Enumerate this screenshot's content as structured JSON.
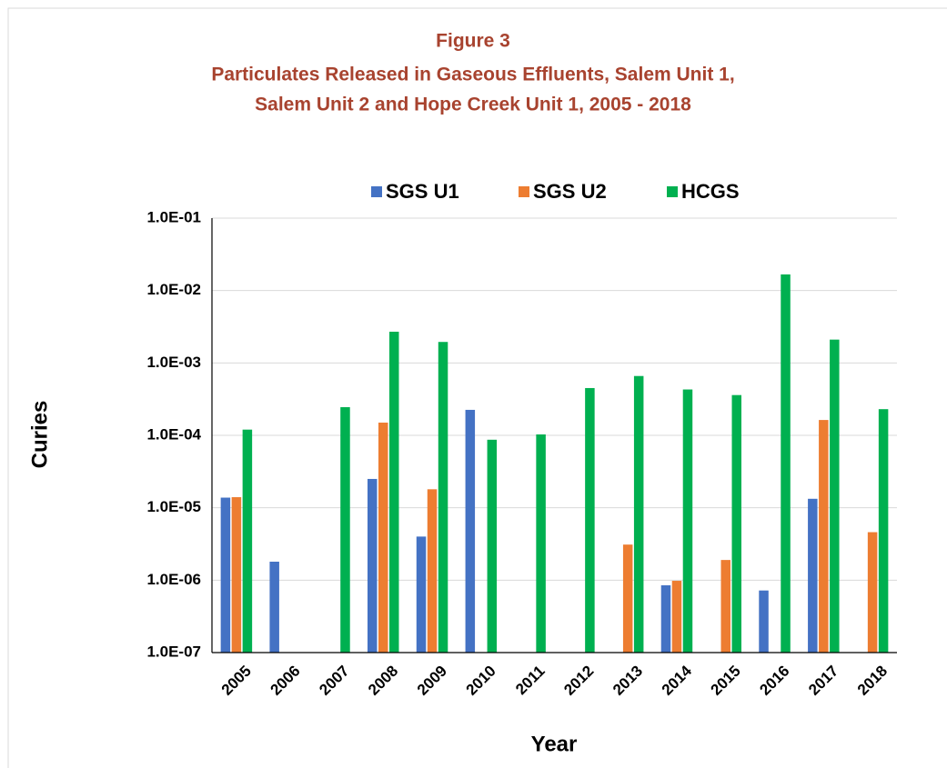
{
  "chart_data": {
    "type": "bar",
    "title": "Figure 3",
    "subtitle": [
      "Particulates Released in Gaseous Effluents, Salem Unit 1,",
      "Salem Unit 2 and Hope Creek Unit 1, 2005 - 2018"
    ],
    "title_color": "#a8432f",
    "x_label": "Year",
    "y_label": "Curies",
    "categories": [
      "2005",
      "2006",
      "2007",
      "2008",
      "2009",
      "2010",
      "2011",
      "2012",
      "2013",
      "2014",
      "2015",
      "2016",
      "2017",
      "2018"
    ],
    "series": [
      {
        "name": "SGS U1",
        "color": "#4472c4",
        "values": [
          1.38e-05,
          1.8e-06,
          null,
          2.5e-05,
          4e-06,
          0.000225,
          null,
          null,
          null,
          8.5e-07,
          null,
          7.2e-07,
          1.33e-05,
          null
        ]
      },
      {
        "name": "SGS U2",
        "color": "#ed7d31",
        "values": [
          1.4e-05,
          null,
          null,
          0.00015,
          1.8e-05,
          null,
          null,
          null,
          3.1e-06,
          9.8e-07,
          1.9e-06,
          null,
          0.000163,
          4.6e-06
        ]
      },
      {
        "name": "HCGS",
        "color": "#00b050",
        "values": [
          0.00012,
          null,
          0.000245,
          0.0027,
          0.00195,
          8.7e-05,
          0.000103,
          0.00045,
          0.00066,
          0.00043,
          0.00036,
          0.0167,
          0.0021,
          0.00023
        ]
      }
    ],
    "log_y": true,
    "ylim": [
      1e-07,
      0.1
    ],
    "yticks": [
      {
        "value": 1e-07,
        "label": "1.0E-07"
      },
      {
        "value": 1e-06,
        "label": "1.0E-06"
      },
      {
        "value": 1e-05,
        "label": "1.0E-05"
      },
      {
        "value": 0.0001,
        "label": "1.0E-04"
      },
      {
        "value": 0.001,
        "label": "1.0E-03"
      },
      {
        "value": 0.01,
        "label": "1.0E-02"
      },
      {
        "value": 0.1,
        "label": "1.0E-01"
      }
    ],
    "grid": true,
    "legend": "top"
  }
}
